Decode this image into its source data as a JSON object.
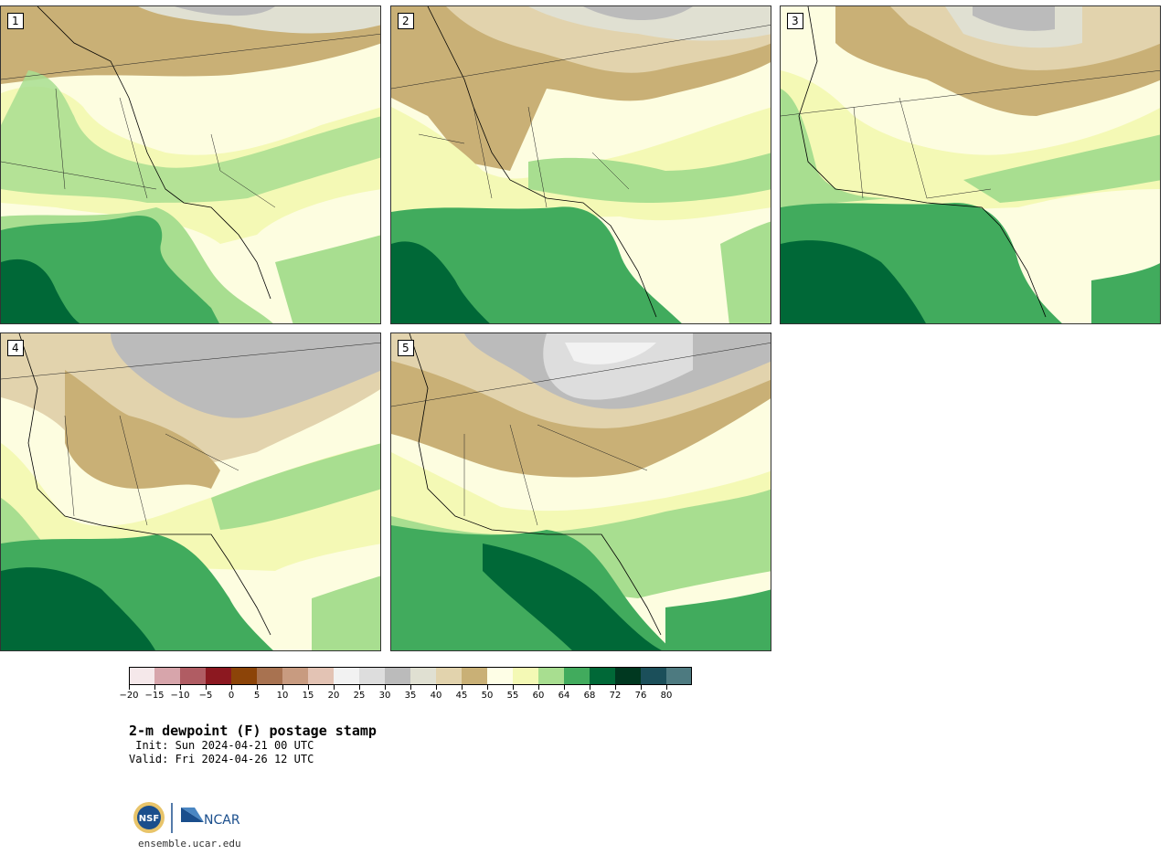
{
  "panels": [
    {
      "label": "1"
    },
    {
      "label": "2"
    },
    {
      "label": "3"
    },
    {
      "label": "4"
    },
    {
      "label": "5"
    }
  ],
  "colorbar": {
    "bins": [
      {
        "color": "#f5e8ea"
      },
      {
        "color": "#d7a5ab"
      },
      {
        "color": "#b05c63"
      },
      {
        "color": "#8c1820"
      },
      {
        "color": "#8c4408"
      },
      {
        "color": "#a87250"
      },
      {
        "color": "#c89b80"
      },
      {
        "color": "#e3c3b4"
      },
      {
        "color": "#f2f2f2"
      },
      {
        "color": "#dddddd"
      },
      {
        "color": "#bbbbbb"
      },
      {
        "color": "#e0e0d2"
      },
      {
        "color": "#e2d3ad"
      },
      {
        "color": "#c9b076"
      },
      {
        "color": "#fefee6"
      },
      {
        "color": "#f4f9b5"
      },
      {
        "color": "#a8de90"
      },
      {
        "color": "#41ab5d"
      },
      {
        "color": "#006837"
      },
      {
        "color": "#003820"
      },
      {
        "color": "#1b4f5a"
      },
      {
        "color": "#4d7a80"
      }
    ],
    "tick_labels": [
      "−20",
      "−15",
      "−10",
      "−5",
      "0",
      "5",
      "10",
      "15",
      "20",
      "25",
      "30",
      "35",
      "40",
      "45",
      "50",
      "55",
      "60",
      "64",
      "68",
      "72",
      "76",
      "80"
    ]
  },
  "title": "2-m dewpoint (F) postage stamp",
  "init": " Init: Sun 2024-04-21 00 UTC",
  "valid": "Valid: Fri 2024-04-26 12 UTC",
  "logos": {
    "nsf": "NSF",
    "ncar": "NCAR"
  },
  "site": "ensemble.ucar.edu"
}
